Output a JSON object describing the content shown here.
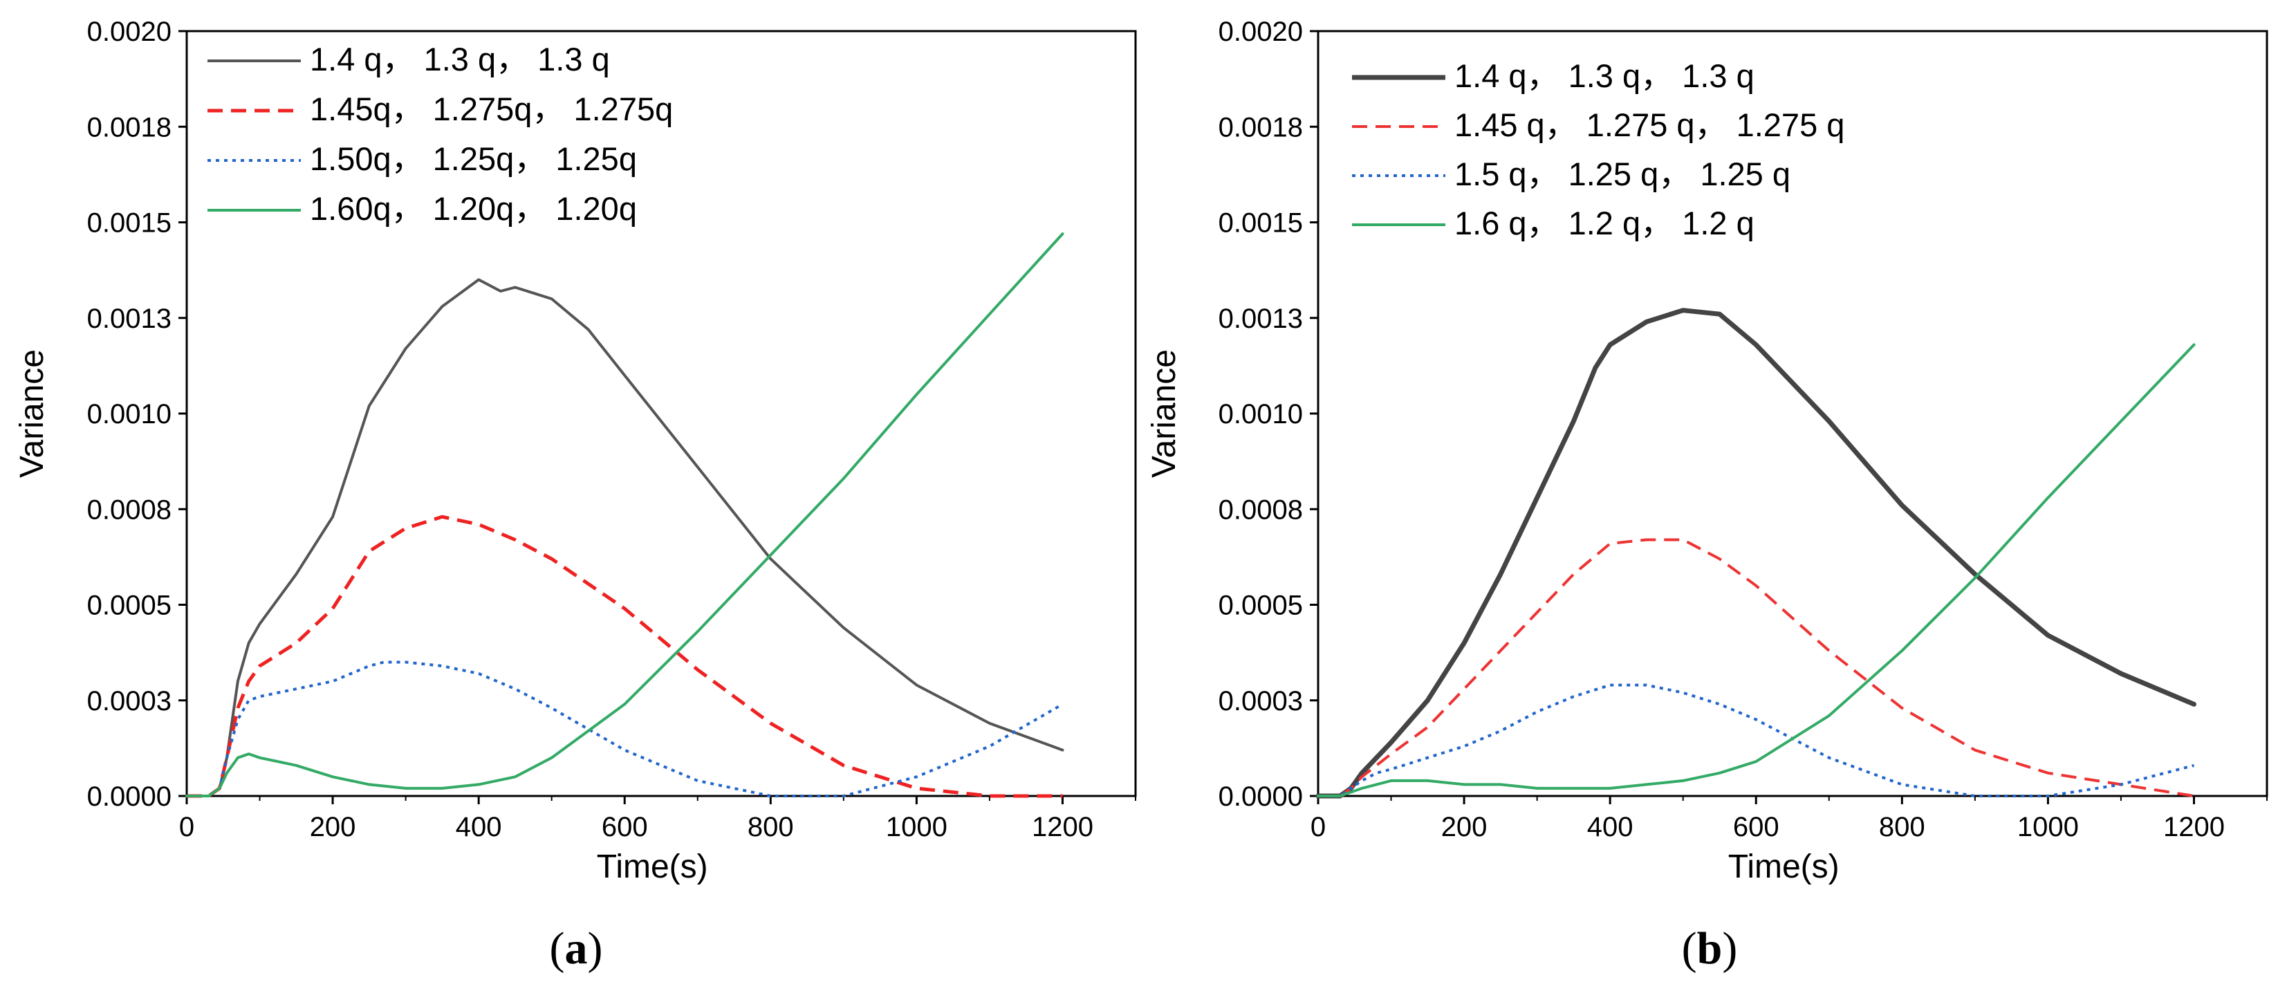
{
  "chart_data": [
    {
      "panel": "a",
      "type": "line",
      "caption": "(a)",
      "caption_parts": [
        "(",
        "a",
        ")"
      ],
      "xlabel": "Time(s)",
      "ylabel": "Variance",
      "xlim": [
        0,
        1300
      ],
      "ylim": [
        0,
        0.002
      ],
      "xticks": [
        0,
        200,
        400,
        600,
        800,
        1000,
        1200
      ],
      "xtick_labels": [
        "0",
        "200",
        "400",
        "600",
        "800",
        "1000",
        "1200"
      ],
      "yticks": [
        0,
        0.00025,
        0.0005,
        0.00075,
        0.001,
        0.00125,
        0.0015,
        0.00175,
        0.002
      ],
      "ytick_labels": [
        "0.0000",
        "0.0003",
        "0.0005",
        "0.0008",
        "0.0010",
        "0.0013",
        "0.0015",
        "0.0018",
        "0.0020"
      ],
      "legend_position": "top-left",
      "series": [
        {
          "name": "1.4 q， 1.3 q， 1.3 q",
          "color": "#555555",
          "dash": "solid",
          "width": 4,
          "x": [
            0,
            30,
            45,
            55,
            70,
            85,
            100,
            150,
            200,
            250,
            300,
            350,
            400,
            430,
            450,
            500,
            550,
            600,
            700,
            800,
            900,
            1000,
            1100,
            1200
          ],
          "y": [
            0,
            0,
            2e-05,
            0.0001,
            0.0003,
            0.0004,
            0.00045,
            0.00058,
            0.00073,
            0.00102,
            0.00117,
            0.00128,
            0.00135,
            0.00132,
            0.00133,
            0.0013,
            0.00122,
            0.0011,
            0.00086,
            0.00062,
            0.00044,
            0.00029,
            0.00019,
            0.00012
          ]
        },
        {
          "name": "1.45q， 1.275q， 1.275q",
          "color": "#ee2222",
          "dash": "dashed",
          "width": 5,
          "x": [
            0,
            30,
            45,
            55,
            70,
            85,
            100,
            150,
            200,
            250,
            300,
            350,
            400,
            450,
            500,
            600,
            700,
            800,
            900,
            1000,
            1100,
            1200
          ],
          "y": [
            0,
            0,
            2e-05,
            0.0001,
            0.00023,
            0.0003,
            0.00034,
            0.0004,
            0.00049,
            0.00064,
            0.0007,
            0.00073,
            0.00071,
            0.00067,
            0.00062,
            0.00049,
            0.00033,
            0.00019,
            8e-05,
            2e-05,
            0,
            0
          ]
        },
        {
          "name": "1.50q， 1.25q， 1.25q",
          "color": "#2266cc",
          "dash": "dotted",
          "width": 4,
          "x": [
            0,
            30,
            45,
            55,
            70,
            85,
            100,
            150,
            200,
            250,
            270,
            300,
            350,
            400,
            450,
            500,
            600,
            700,
            800,
            900,
            1000,
            1100,
            1200
          ],
          "y": [
            0,
            0,
            2e-05,
            0.0001,
            0.0002,
            0.00025,
            0.00026,
            0.00028,
            0.0003,
            0.00034,
            0.00035,
            0.00035,
            0.00034,
            0.00032,
            0.00028,
            0.00023,
            0.00012,
            4e-05,
            0,
            0,
            5e-05,
            0.00013,
            0.00024
          ]
        },
        {
          "name": "1.60q， 1.20q， 1.20q",
          "color": "#33aa66",
          "dash": "solid",
          "width": 4,
          "x": [
            0,
            30,
            45,
            55,
            70,
            85,
            100,
            150,
            200,
            250,
            300,
            350,
            400,
            450,
            500,
            600,
            700,
            800,
            900,
            1000,
            1100,
            1200
          ],
          "y": [
            0,
            0,
            2e-05,
            6e-05,
            0.0001,
            0.00011,
            0.0001,
            8e-05,
            5e-05,
            3e-05,
            2e-05,
            2e-05,
            3e-05,
            5e-05,
            0.0001,
            0.00024,
            0.00043,
            0.00063,
            0.00083,
            0.00105,
            0.00126,
            0.00147
          ]
        }
      ]
    },
    {
      "panel": "b",
      "type": "line",
      "caption": "(b)",
      "caption_parts": [
        "(",
        "b",
        ")"
      ],
      "xlabel": "Time(s)",
      "ylabel": "Variance",
      "xlim": [
        0,
        1300
      ],
      "ylim": [
        0,
        0.002
      ],
      "xticks": [
        0,
        200,
        400,
        600,
        800,
        1000,
        1200
      ],
      "xtick_labels": [
        "0",
        "200",
        "400",
        "600",
        "800",
        "1000",
        "1200"
      ],
      "yticks": [
        0,
        0.00025,
        0.0005,
        0.00075,
        0.001,
        0.00125,
        0.0015,
        0.00175,
        0.002
      ],
      "ytick_labels": [
        "0.0000",
        "0.0003",
        "0.0005",
        "0.0008",
        "0.0010",
        "0.0013",
        "0.0015",
        "0.0018",
        "0.0020"
      ],
      "legend_position": "top-left",
      "series": [
        {
          "name": "1.4 q， 1.3 q， 1.3 q",
          "color": "#444444",
          "dash": "solid",
          "width": 7,
          "x": [
            0,
            30,
            45,
            60,
            80,
            100,
            150,
            200,
            250,
            300,
            350,
            380,
            400,
            450,
            500,
            550,
            600,
            700,
            800,
            900,
            1000,
            1100,
            1200
          ],
          "y": [
            0,
            0,
            2e-05,
            6e-05,
            0.0001,
            0.00014,
            0.00025,
            0.0004,
            0.00058,
            0.00078,
            0.00098,
            0.00112,
            0.00118,
            0.00124,
            0.00127,
            0.00126,
            0.00118,
            0.00098,
            0.00076,
            0.00058,
            0.00042,
            0.00032,
            0.00024
          ]
        },
        {
          "name": "1.45 q， 1.275 q， 1.275 q",
          "color": "#ee3333",
          "dash": "dashed",
          "width": 4,
          "x": [
            0,
            30,
            45,
            60,
            80,
            100,
            150,
            200,
            250,
            300,
            350,
            400,
            450,
            500,
            550,
            600,
            700,
            800,
            900,
            1000,
            1100,
            1200
          ],
          "y": [
            0,
            0,
            2e-05,
            5e-05,
            8e-05,
            0.00011,
            0.00018,
            0.00028,
            0.00038,
            0.00048,
            0.00058,
            0.00066,
            0.00067,
            0.00067,
            0.00062,
            0.00055,
            0.00038,
            0.00023,
            0.00012,
            6e-05,
            3e-05,
            0
          ]
        },
        {
          "name": "1.5 q， 1.25 q， 1.25 q",
          "color": "#2266cc",
          "dash": "dotted",
          "width": 4,
          "x": [
            0,
            30,
            45,
            60,
            80,
            100,
            150,
            200,
            250,
            300,
            350,
            400,
            450,
            500,
            550,
            600,
            700,
            800,
            900,
            1000,
            1100,
            1200
          ],
          "y": [
            0,
            0,
            2e-05,
            4e-05,
            6e-05,
            7e-05,
            0.0001,
            0.00013,
            0.00017,
            0.00022,
            0.00026,
            0.00029,
            0.00029,
            0.00027,
            0.00024,
            0.0002,
            0.0001,
            3e-05,
            0,
            0,
            3e-05,
            8e-05
          ]
        },
        {
          "name": "1.6 q， 1.2 q， 1.2 q",
          "color": "#33aa66",
          "dash": "solid",
          "width": 4,
          "x": [
            0,
            30,
            45,
            60,
            80,
            100,
            125,
            150,
            200,
            250,
            300,
            350,
            400,
            450,
            500,
            550,
            600,
            700,
            800,
            900,
            1000,
            1100,
            1200
          ],
          "y": [
            0,
            0,
            1e-05,
            2e-05,
            3e-05,
            4e-05,
            4e-05,
            4e-05,
            3e-05,
            3e-05,
            2e-05,
            2e-05,
            2e-05,
            3e-05,
            4e-05,
            6e-05,
            9e-05,
            0.00021,
            0.00038,
            0.00057,
            0.00078,
            0.00098,
            0.00118
          ]
        }
      ]
    }
  ]
}
